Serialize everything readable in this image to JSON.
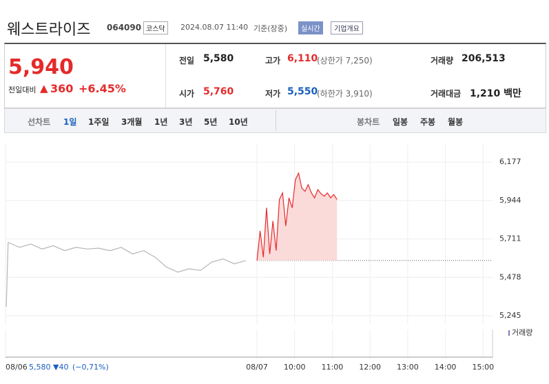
{
  "header": {
    "name": "웨스트라이즈",
    "code": "064090",
    "market": "코스닥",
    "datetime": "2024.08.07 11:40",
    "basis": "기준(장중)",
    "realtime": "실시간",
    "company": "기업개요"
  },
  "summary": {
    "price": "5,940",
    "change_label": "전일대비",
    "change_sign": "▲",
    "change": "360",
    "change_pct": "+6.45%",
    "prev_label": "전일",
    "prev": "5,580",
    "open_label": "시가",
    "open": "5,760",
    "high_label": "고가",
    "high": "6,110",
    "high_limit": "(상한가 7,250)",
    "low_label": "저가",
    "low": "5,550",
    "low_limit": "(하한가 3,910)",
    "volume_label": "거래량",
    "volume": "206,513",
    "amount_label": "거래대금",
    "amount": "1,210 백만"
  },
  "tabs": {
    "line_label": "선차트",
    "line": [
      "1일",
      "1주일",
      "3개월",
      "1년",
      "3년",
      "5년",
      "10년"
    ],
    "candle_label": "봉차트",
    "candle": [
      "일봉",
      "주봉",
      "월봉"
    ]
  },
  "chart_data": {
    "type": "line",
    "legend": "거래량",
    "series": [
      {
        "color": "#b5b5b5",
        "x": [
          2.35,
          2.4,
          2.7,
          3.0,
          3.3,
          3.6,
          3.9,
          4.2,
          4.5,
          4.8,
          5.1,
          5.4,
          5.7,
          6.0,
          6.3,
          6.6,
          6.9,
          7.2,
          7.5,
          7.8,
          8.1,
          8.4,
          8.7
        ],
        "values": [
          5300,
          5690,
          5660,
          5680,
          5650,
          5670,
          5640,
          5660,
          5650,
          5655,
          5640,
          5660,
          5620,
          5640,
          5600,
          5540,
          5510,
          5530,
          5520,
          5570,
          5590,
          5560,
          5580
        ]
      },
      {
        "color": "#e52a2a",
        "x": [
          9.0,
          9.085,
          9.17,
          9.255,
          9.34,
          9.425,
          9.51,
          9.595,
          9.68,
          9.765,
          9.85,
          9.935,
          10.02,
          10.105,
          10.19,
          10.275,
          10.36,
          10.445,
          10.53,
          10.615,
          10.7,
          10.785,
          10.87,
          10.955,
          11.04,
          11.125
        ],
        "values": [
          5580,
          5760,
          5600,
          5900,
          5620,
          5820,
          5640,
          5950,
          5990,
          5790,
          5960,
          5900,
          6070,
          6110,
          6020,
          6000,
          6040,
          5990,
          5960,
          6010,
          5985,
          5970,
          5990,
          5960,
          5980,
          5950
        ]
      }
    ],
    "baseline": 5580,
    "ylim": [
      5195,
      6282
    ],
    "yticks": [
      {
        "value": 6177,
        "label": "6,177"
      },
      {
        "value": 5944,
        "label": "5,944"
      },
      {
        "value": 5711,
        "label": "5,711"
      },
      {
        "value": 5478,
        "label": "5,478"
      },
      {
        "value": 5245,
        "label": "5,245"
      }
    ],
    "xlim": [
      2.33,
      15.25
    ],
    "xticks": [
      {
        "value": 2.33,
        "label": "08/06"
      },
      {
        "value": 9,
        "label": "08/07"
      },
      {
        "value": 10,
        "label": "10:00"
      },
      {
        "value": 11,
        "label": "11:00"
      },
      {
        "value": 12,
        "label": "12:00"
      },
      {
        "value": 13,
        "label": "13:00"
      },
      {
        "value": 14,
        "label": "14:00"
      },
      {
        "value": 15,
        "label": "15:00"
      }
    ],
    "footer": {
      "prev": "5,580",
      "change": "▼40",
      "pct": "(−0,71%)"
    }
  }
}
